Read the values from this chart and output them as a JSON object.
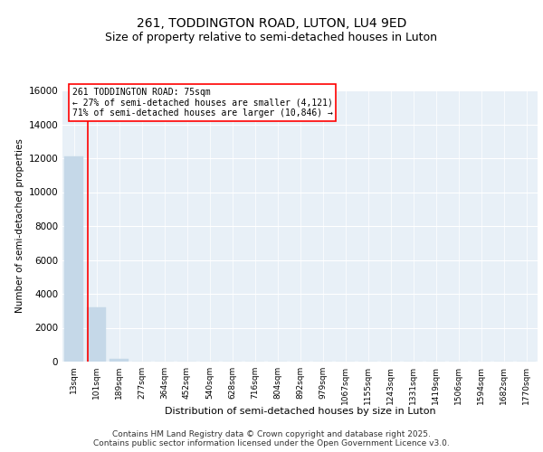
{
  "title_line1": "261, TODDINGTON ROAD, LUTON, LU4 9ED",
  "title_line2": "Size of property relative to semi-detached houses in Luton",
  "xlabel": "Distribution of semi-detached houses by size in Luton",
  "ylabel": "Number of semi-detached properties",
  "categories": [
    "13sqm",
    "101sqm",
    "189sqm",
    "277sqm",
    "364sqm",
    "452sqm",
    "540sqm",
    "628sqm",
    "716sqm",
    "804sqm",
    "892sqm",
    "979sqm",
    "1067sqm",
    "1155sqm",
    "1243sqm",
    "1331sqm",
    "1419sqm",
    "1506sqm",
    "1594sqm",
    "1682sqm",
    "1770sqm"
  ],
  "values": [
    12100,
    3200,
    150,
    0,
    0,
    0,
    0,
    0,
    0,
    0,
    0,
    0,
    0,
    0,
    0,
    0,
    0,
    0,
    0,
    0,
    0
  ],
  "bar_color": "#c5d8e8",
  "vline_color": "red",
  "vline_position": 0.6,
  "annotation_box_text": "261 TODDINGTON ROAD: 75sqm\n← 27% of semi-detached houses are smaller (4,121)\n71% of semi-detached houses are larger (10,846) →",
  "ylim": [
    0,
    16000
  ],
  "yticks": [
    0,
    2000,
    4000,
    6000,
    8000,
    10000,
    12000,
    14000,
    16000
  ],
  "background_color": "#e8f0f7",
  "grid_color": "#ffffff",
  "footer_text": "Contains HM Land Registry data © Crown copyright and database right 2025.\nContains public sector information licensed under the Open Government Licence v3.0.",
  "title_fontsize": 10,
  "subtitle_fontsize": 9,
  "annotation_fontsize": 7,
  "footer_fontsize": 6.5,
  "ylabel_fontsize": 7.5,
  "xlabel_fontsize": 8,
  "ytick_fontsize": 7.5,
  "xtick_fontsize": 6.5
}
